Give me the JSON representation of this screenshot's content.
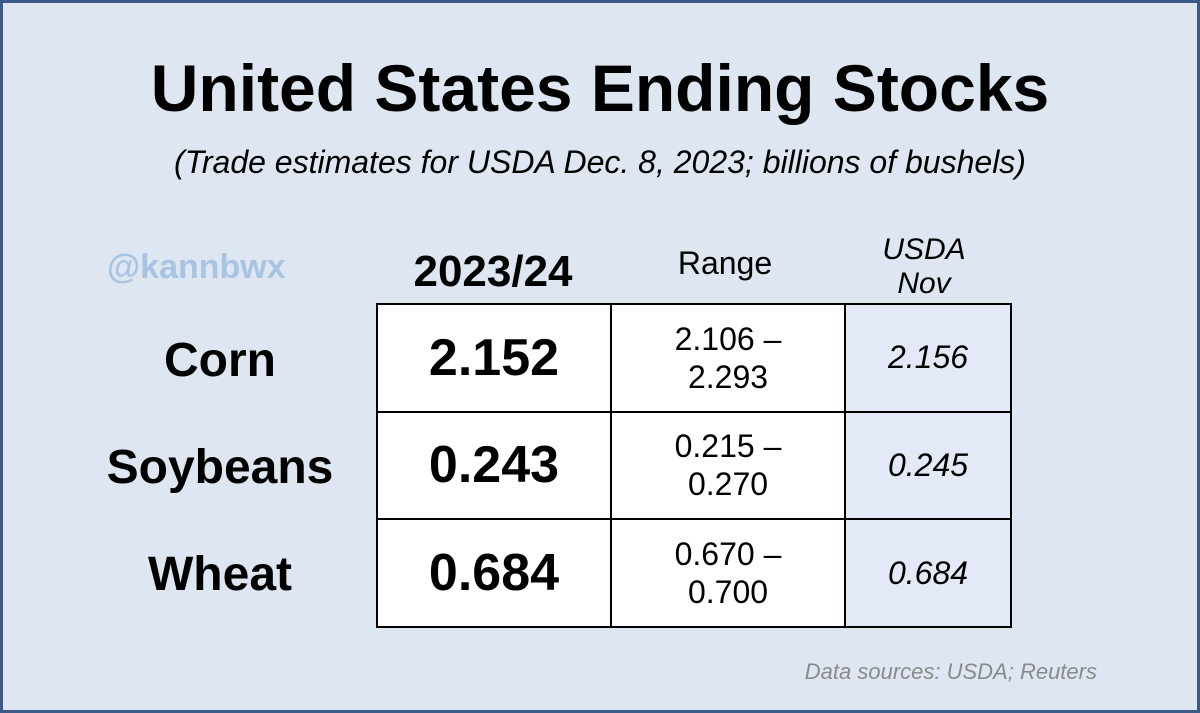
{
  "title": "United States Ending Stocks",
  "subtitle": "(Trade estimates for USDA Dec. 8, 2023; billions of bushels)",
  "watermark": "@kannbwx",
  "columns": {
    "year": "2023/24",
    "range": "Range",
    "usda_line1": "USDA",
    "usda_line2": "Nov"
  },
  "rows": [
    {
      "label": "Corn",
      "estimate": "2.152",
      "range_low": "2.106 –",
      "range_high": "2.293",
      "usda_nov": "2.156"
    },
    {
      "label": "Soybeans",
      "estimate": "0.243",
      "range_low": "0.215 –",
      "range_high": "0.270",
      "usda_nov": "0.245"
    },
    {
      "label": "Wheat",
      "estimate": "0.684",
      "range_low": "0.670 –",
      "range_high": "0.700",
      "usda_nov": "0.684"
    }
  ],
  "source": "Data sources: USDA; Reuters",
  "colors": {
    "background": "#dde6f1",
    "border": "#3d5a8a",
    "watermark": "#a9c3e2",
    "usda_cell": "#e3e9f6",
    "source_text": "#8a8a8a"
  }
}
